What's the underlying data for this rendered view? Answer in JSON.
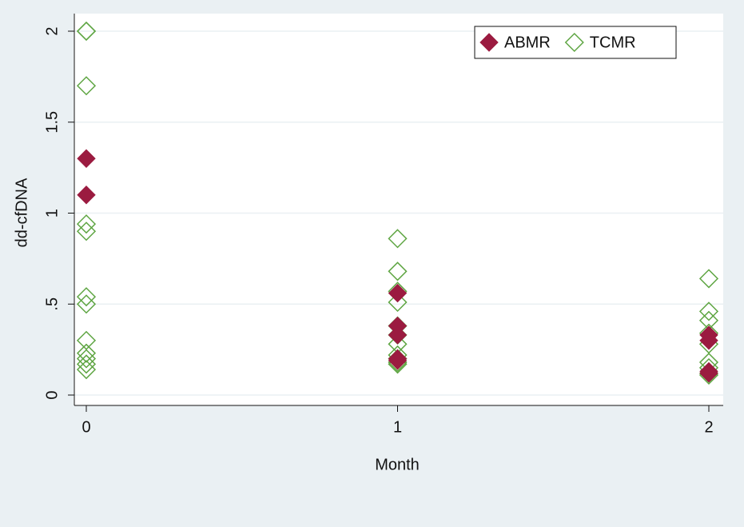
{
  "chart_data": {
    "type": "scatter",
    "xlabel": "Month",
    "ylabel": "dd-cfDNA",
    "xlim": [
      0,
      2
    ],
    "xticks": [
      0,
      1,
      2
    ],
    "ylim": [
      0,
      2
    ],
    "yticks": [
      0,
      {
        "value": 0.5,
        "label": ".5"
      },
      1,
      1.5,
      2
    ],
    "grid": true,
    "legend": "top-right",
    "series": [
      {
        "name": "ABMR",
        "color": "#9b1b40",
        "marker": "filled-diamond",
        "x": [
          0,
          0,
          1,
          1,
          1,
          1,
          1,
          2,
          2,
          2,
          2
        ],
        "y": [
          1.3,
          1.1,
          0.56,
          0.38,
          0.33,
          0.2,
          0.19,
          0.33,
          0.3,
          0.13,
          0.12
        ]
      },
      {
        "name": "TCMR",
        "color": "#5ea542",
        "marker": "hollow-diamond",
        "x": [
          0,
          0,
          0,
          0,
          0,
          0,
          0,
          0,
          0,
          0,
          0,
          0,
          1,
          1,
          1,
          1,
          1,
          1,
          1,
          1,
          1,
          1,
          1,
          2,
          2,
          2,
          2,
          2,
          2,
          2,
          2,
          2
        ],
        "y": [
          2.0,
          2.0,
          1.7,
          0.94,
          0.9,
          0.54,
          0.5,
          0.3,
          0.23,
          0.2,
          0.17,
          0.14,
          0.86,
          0.68,
          0.57,
          0.51,
          0.38,
          0.33,
          0.28,
          0.22,
          0.2,
          0.18,
          0.17,
          0.64,
          0.46,
          0.41,
          0.34,
          0.28,
          0.18,
          0.15,
          0.12,
          0.11
        ]
      }
    ]
  }
}
